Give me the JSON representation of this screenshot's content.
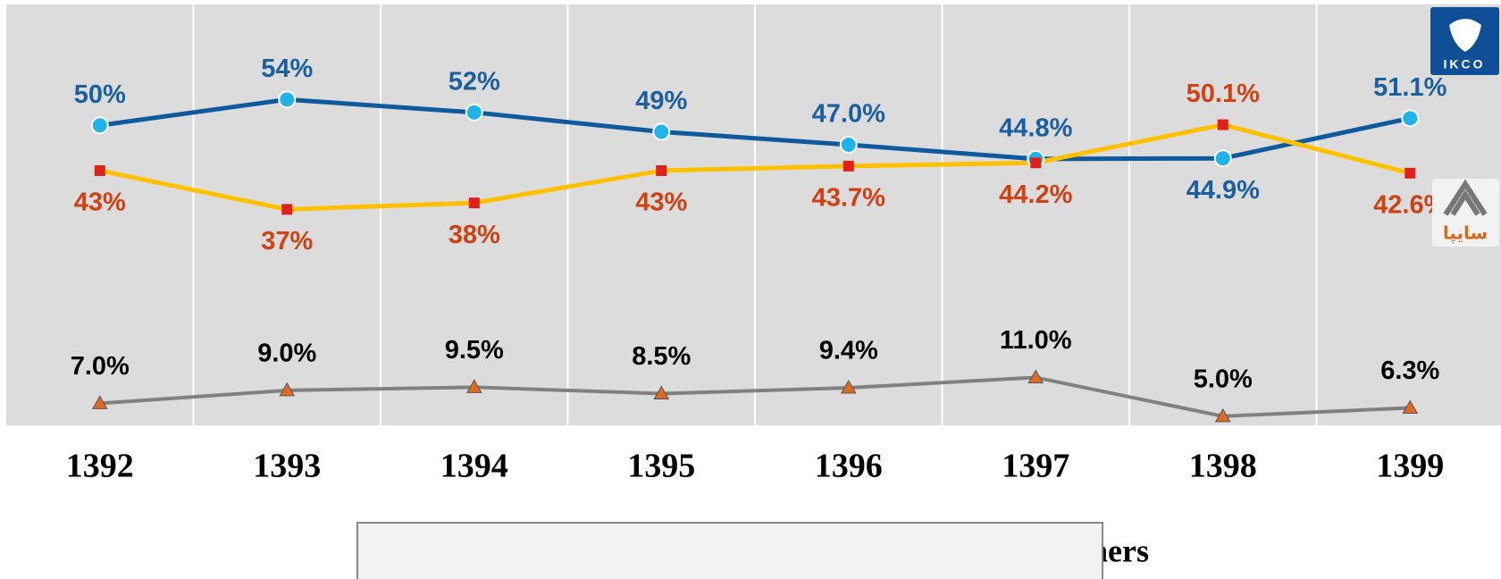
{
  "chart_data": {
    "type": "line",
    "categories": [
      "1392",
      "1393",
      "1394",
      "1395",
      "1396",
      "1397",
      "1398",
      "1399"
    ],
    "series": [
      {
        "name": "IKCO",
        "color": "#0f5a9c",
        "marker_color": "#1fb3ea",
        "label_color": "#1a5fa0",
        "values": [
          50,
          54,
          52,
          49,
          47.0,
          44.8,
          44.9,
          51.1
        ],
        "value_labels": [
          "50%",
          "54%",
          "52%",
          "49%",
          "47.0%",
          "44.8%",
          "44.9%",
          "51.1%"
        ]
      },
      {
        "name": "Saipa Group",
        "color": "#ffc000",
        "marker_color": "#e0201b",
        "label_color": "#d04010",
        "values": [
          43,
          37,
          38,
          43,
          43.7,
          44.2,
          50.1,
          42.6
        ],
        "value_labels": [
          "43%",
          "37%",
          "38%",
          "43%",
          "43.7%",
          "44.2%",
          "50.1%",
          "42.6%"
        ]
      },
      {
        "name": "Others",
        "color": "#808080",
        "marker_color": "#e06a20",
        "label_color": "#000000",
        "values": [
          7.0,
          9.0,
          9.5,
          8.5,
          9.4,
          11.0,
          5.0,
          6.3
        ],
        "value_labels": [
          "7.0%",
          "9.0%",
          "9.5%",
          "8.5%",
          "9.4%",
          "11.0%",
          "5.0%",
          "6.3%"
        ]
      }
    ],
    "ylim": [
      3.6,
      68.7
    ],
    "grid": true,
    "logos": [
      "IKCO",
      "سايپا"
    ]
  }
}
